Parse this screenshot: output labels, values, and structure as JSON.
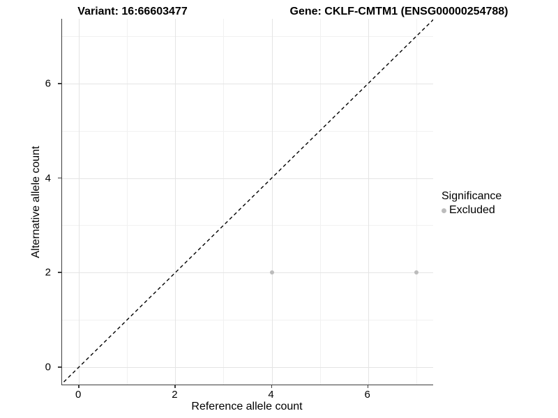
{
  "figure": {
    "title_left": "Variant: 16:66603477",
    "title_right": "Gene: CKLF-CMTM1 (ENSG00000254788)"
  },
  "chart_data": {
    "type": "scatter",
    "title": "Variant: 16:66603477 / Gene: CKLF-CMTM1 (ENSG00000254788)",
    "xlabel": "Reference allele count",
    "ylabel": "Alternative allele count",
    "x_ticks": [
      0,
      2,
      4,
      6
    ],
    "y_ticks": [
      0,
      2,
      4,
      6
    ],
    "x_minor_gridlines": [
      1,
      3,
      5,
      7
    ],
    "y_minor_gridlines": [
      1,
      3,
      5,
      7
    ],
    "xlim": [
      -0.35,
      7.35
    ],
    "ylim": [
      -0.37,
      7.37
    ],
    "grid": "major and minor, light gray",
    "series": [
      {
        "name": "Excluded",
        "color": "#bcbcbc",
        "point_radius": 3,
        "points": [
          [
            4,
            2
          ],
          [
            7,
            2
          ]
        ]
      }
    ],
    "reference_line": {
      "kind": "identity (y = x)",
      "style": "dashed",
      "color": "#000000"
    },
    "legend": {
      "title": "Significance",
      "position": "right",
      "items": [
        {
          "label": "Excluded",
          "color": "#bcbcbc"
        }
      ]
    },
    "colors": {
      "axis_line": "#3c3c3c",
      "grid_major": "#e4e4e4",
      "grid_minor": "#f1f1f1",
      "text": "#000000"
    }
  }
}
